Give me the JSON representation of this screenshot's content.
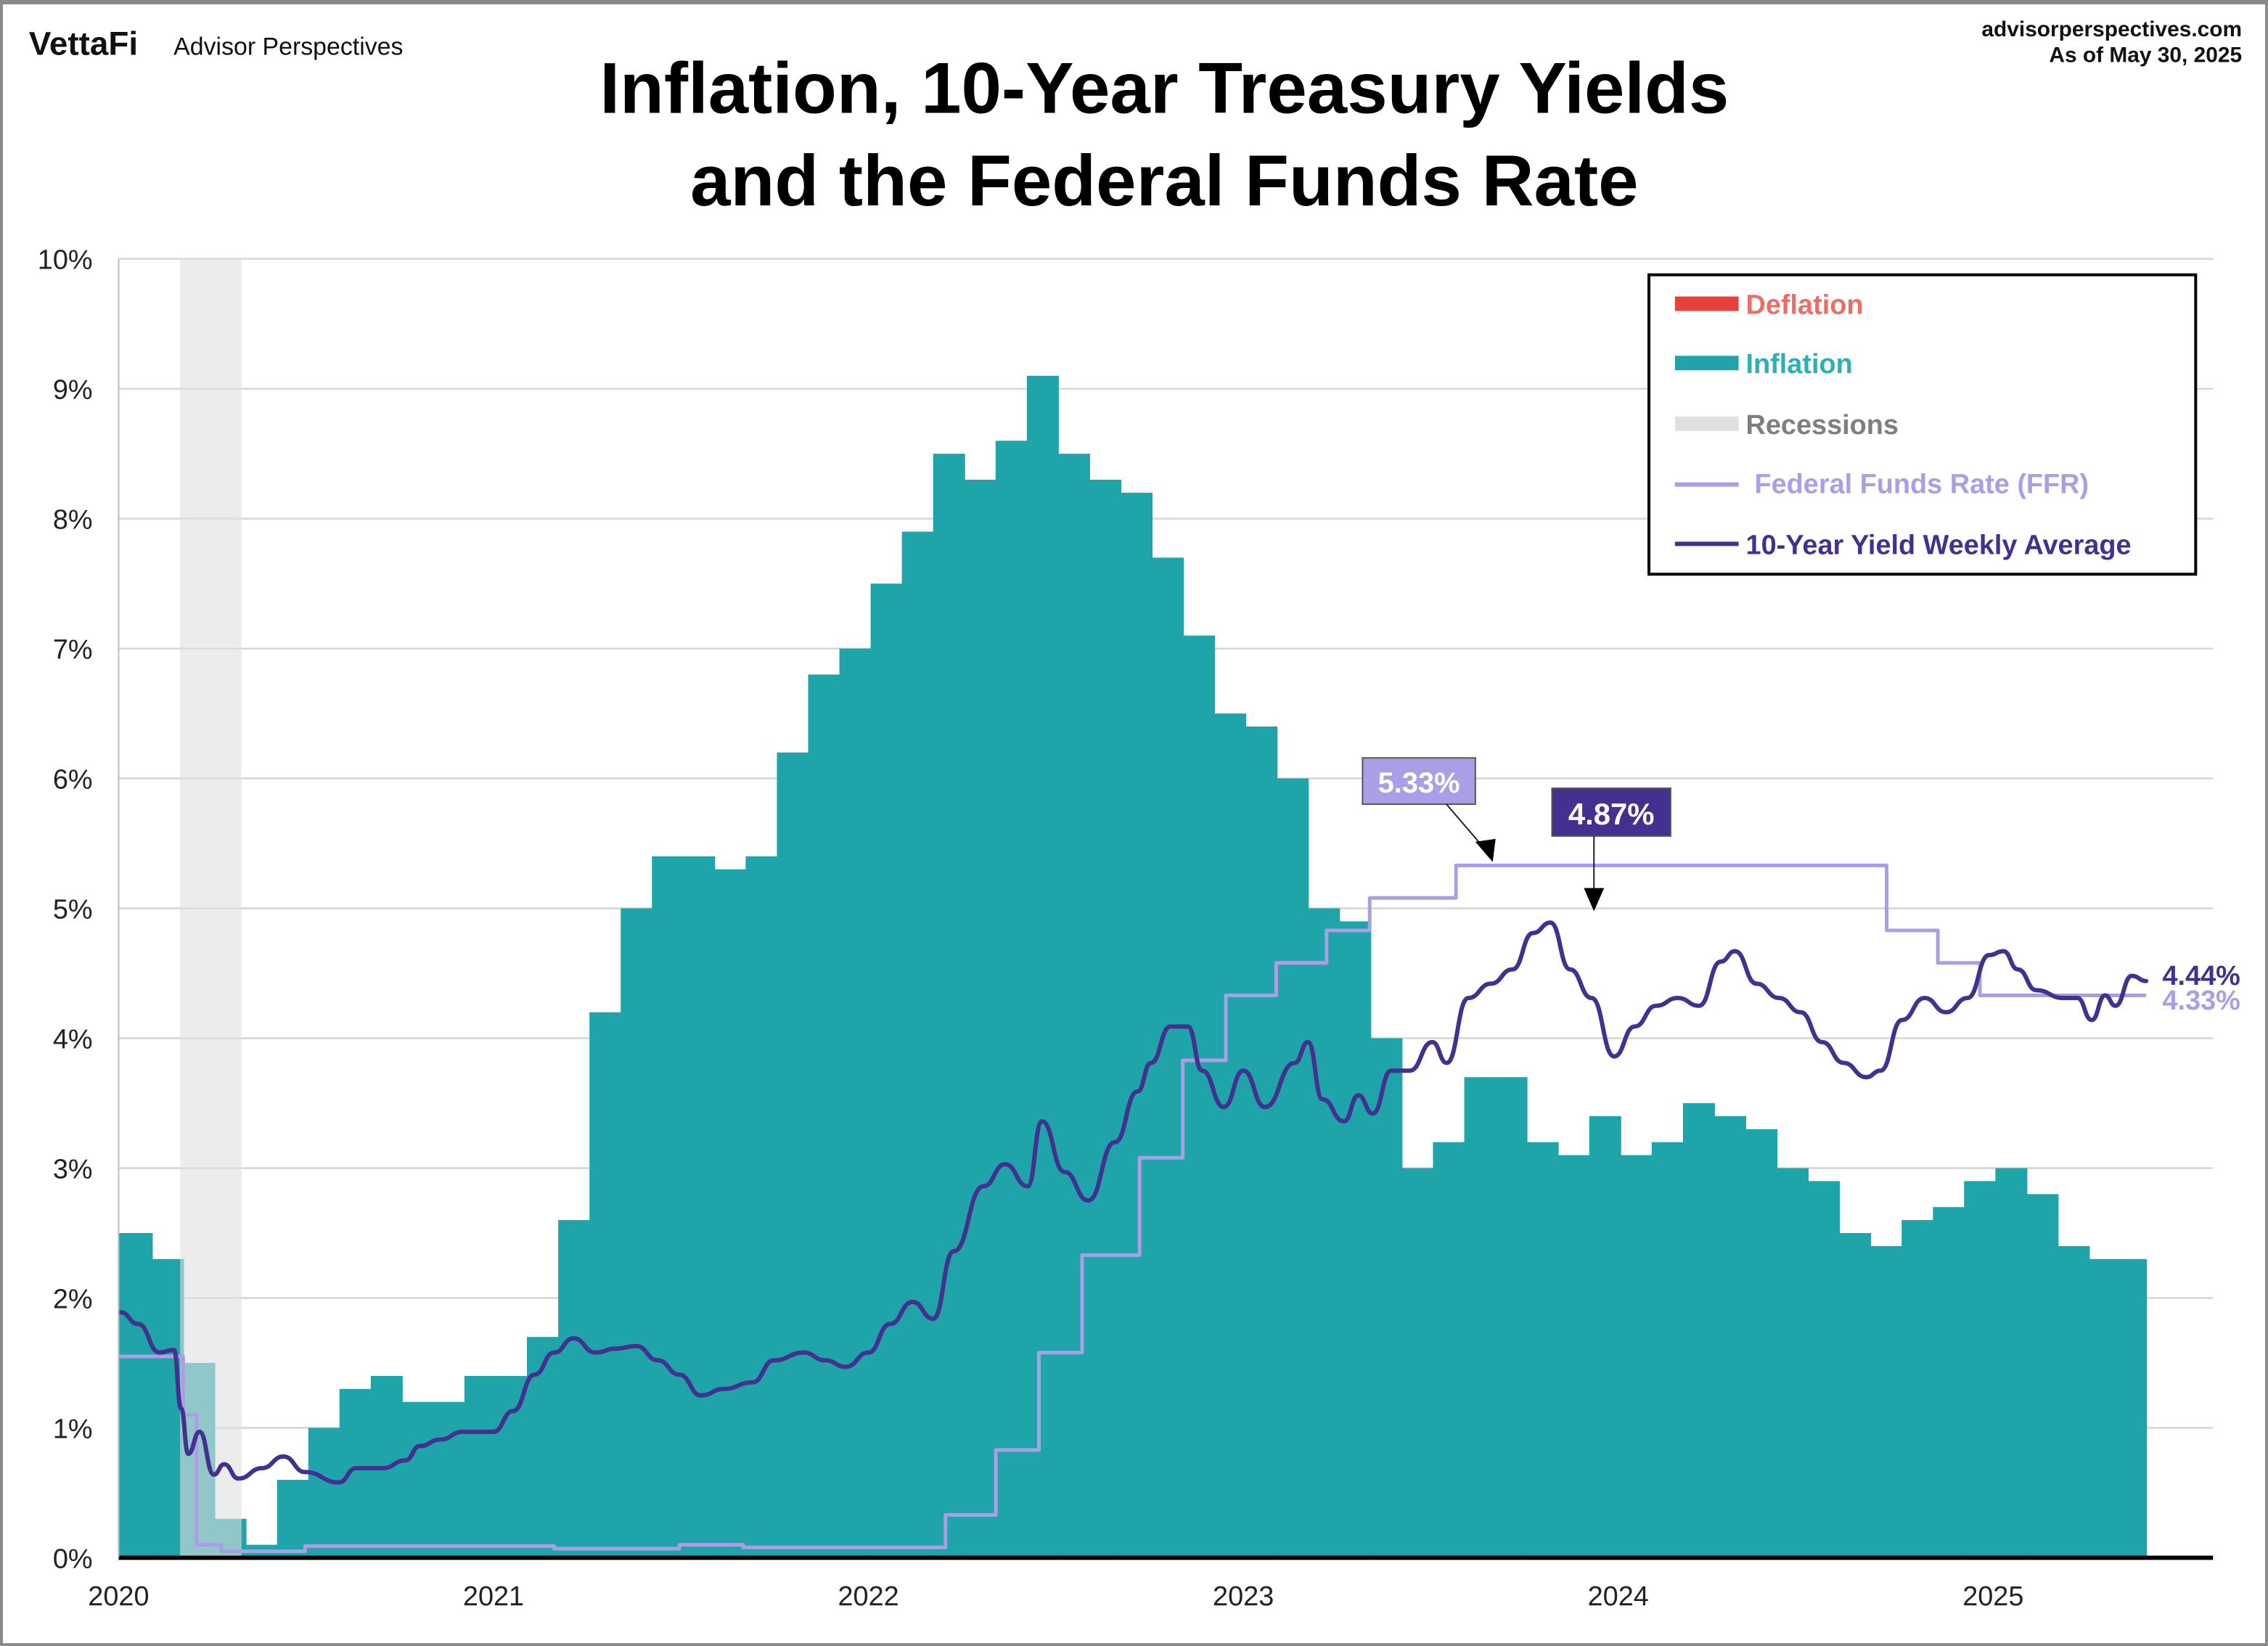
{
  "header": {
    "brand_logo": "VettaFi",
    "brand_name": "Advisor Perspectives",
    "website": "advisorperspectives.com",
    "as_of": "As of May 30, 2025"
  },
  "colors": {
    "deflation": "#e8413c",
    "inflation": "#1fa4a9",
    "recession": "#e0e0e0",
    "ffr": "#ab9ee6",
    "ten_year": "#43308f"
  },
  "chart_data": {
    "type": "area",
    "title_line1": "Inflation, 10-Year Treasury Yields",
    "title_line2": "and the Federal Funds Rate",
    "xlabel": "",
    "ylabel": "",
    "ylim": [
      0,
      10
    ],
    "xlim": [
      "2020-01-01",
      "2025-08-01"
    ],
    "y_ticks": [
      "0%",
      "1%",
      "2%",
      "3%",
      "4%",
      "5%",
      "6%",
      "7%",
      "8%",
      "9%",
      "10%"
    ],
    "x_ticks": [
      "2020",
      "2021",
      "2022",
      "2023",
      "2024",
      "2025"
    ],
    "grid": true,
    "legend_position": "top-right",
    "legend": [
      {
        "key": "deflation",
        "label": "Deflation"
      },
      {
        "key": "inflation",
        "label": "Inflation"
      },
      {
        "key": "recession",
        "label": "Recessions"
      },
      {
        "key": "ffr",
        "label": "Federal Funds Rate (FFR)"
      },
      {
        "key": "ten_year",
        "label": "10-Year Yield Weekly Average"
      }
    ],
    "recessions": [
      {
        "start": "2020-03-01",
        "end": "2020-04-30"
      }
    ],
    "inflation_monthly": {
      "start_month": "2020-01",
      "values": [
        2.5,
        2.3,
        1.5,
        0.3,
        0.1,
        0.6,
        1.0,
        1.3,
        1.4,
        1.2,
        1.2,
        1.4,
        1.4,
        1.7,
        2.6,
        4.2,
        5.0,
        5.4,
        5.4,
        5.3,
        5.4,
        6.2,
        6.8,
        7.0,
        7.5,
        7.9,
        8.5,
        8.3,
        8.6,
        9.1,
        8.5,
        8.3,
        8.2,
        7.7,
        7.1,
        6.5,
        6.4,
        6.0,
        5.0,
        4.9,
        4.0,
        3.0,
        3.2,
        3.7,
        3.7,
        3.2,
        3.1,
        3.4,
        3.1,
        3.2,
        3.5,
        3.4,
        3.3,
        3.0,
        2.9,
        2.5,
        2.4,
        2.6,
        2.7,
        2.9,
        3.0,
        2.8,
        2.4,
        2.3
      ]
    },
    "ffr": [
      [
        "2020-01-01",
        1.55
      ],
      [
        "2020-03-04",
        1.1
      ],
      [
        "2020-03-17",
        0.1
      ],
      [
        "2020-04-10",
        0.05
      ],
      [
        "2020-07-01",
        0.09
      ],
      [
        "2021-03-01",
        0.07
      ],
      [
        "2021-07-01",
        0.1
      ],
      [
        "2021-09-01",
        0.08
      ],
      [
        "2022-03-17",
        0.33
      ],
      [
        "2022-05-05",
        0.83
      ],
      [
        "2022-06-16",
        1.58
      ],
      [
        "2022-07-28",
        2.33
      ],
      [
        "2022-09-22",
        3.08
      ],
      [
        "2022-11-03",
        3.83
      ],
      [
        "2022-12-15",
        4.33
      ],
      [
        "2023-02-02",
        4.58
      ],
      [
        "2023-03-23",
        4.83
      ],
      [
        "2023-05-04",
        5.08
      ],
      [
        "2023-07-27",
        5.33
      ],
      [
        "2024-09-19",
        4.83
      ],
      [
        "2024-11-08",
        4.58
      ],
      [
        "2024-12-19",
        4.33
      ],
      [
        "2025-05-30",
        4.33
      ]
    ],
    "ten_year_weekly": [
      [
        "2020-01-03",
        1.89
      ],
      [
        "2020-01-20",
        1.8
      ],
      [
        "2020-02-10",
        1.58
      ],
      [
        "2020-02-24",
        1.6
      ],
      [
        "2020-03-02",
        1.15
      ],
      [
        "2020-03-09",
        0.8
      ],
      [
        "2020-03-20",
        0.97
      ],
      [
        "2020-04-03",
        0.64
      ],
      [
        "2020-04-13",
        0.72
      ],
      [
        "2020-04-27",
        0.61
      ],
      [
        "2020-05-20",
        0.69
      ],
      [
        "2020-06-10",
        0.78
      ],
      [
        "2020-07-01",
        0.66
      ],
      [
        "2020-08-03",
        0.58
      ],
      [
        "2020-08-20",
        0.69
      ],
      [
        "2020-09-15",
        0.69
      ],
      [
        "2020-10-07",
        0.75
      ],
      [
        "2020-10-21",
        0.86
      ],
      [
        "2020-11-10",
        0.91
      ],
      [
        "2020-12-02",
        0.97
      ],
      [
        "2021-01-01",
        0.97
      ],
      [
        "2021-01-20",
        1.13
      ],
      [
        "2021-02-10",
        1.41
      ],
      [
        "2021-03-01",
        1.58
      ],
      [
        "2021-03-20",
        1.69
      ],
      [
        "2021-04-10",
        1.58
      ],
      [
        "2021-04-30",
        1.61
      ],
      [
        "2021-05-20",
        1.63
      ],
      [
        "2021-06-10",
        1.52
      ],
      [
        "2021-07-01",
        1.41
      ],
      [
        "2021-07-22",
        1.25
      ],
      [
        "2021-08-13",
        1.3
      ],
      [
        "2021-09-10",
        1.35
      ],
      [
        "2021-10-01",
        1.52
      ],
      [
        "2021-10-30",
        1.58
      ],
      [
        "2021-11-20",
        1.52
      ],
      [
        "2021-12-10",
        1.47
      ],
      [
        "2022-01-01",
        1.58
      ],
      [
        "2022-01-22",
        1.8
      ],
      [
        "2022-02-13",
        1.97
      ],
      [
        "2022-03-05",
        1.84
      ],
      [
        "2022-03-25",
        2.36
      ],
      [
        "2022-04-23",
        2.86
      ],
      [
        "2022-05-14",
        3.03
      ],
      [
        "2022-06-05",
        2.86
      ],
      [
        "2022-06-19",
        3.36
      ],
      [
        "2022-07-11",
        2.97
      ],
      [
        "2022-08-03",
        2.75
      ],
      [
        "2022-08-29",
        3.2
      ],
      [
        "2022-09-20",
        3.59
      ],
      [
        "2022-10-03",
        3.81
      ],
      [
        "2022-10-22",
        4.09
      ],
      [
        "2022-11-08",
        4.09
      ],
      [
        "2022-11-22",
        3.75
      ],
      [
        "2022-12-13",
        3.47
      ],
      [
        "2023-01-01",
        3.75
      ],
      [
        "2023-01-22",
        3.47
      ],
      [
        "2023-02-20",
        3.81
      ],
      [
        "2023-03-05",
        3.97
      ],
      [
        "2023-03-19",
        3.53
      ],
      [
        "2023-04-09",
        3.36
      ],
      [
        "2023-04-23",
        3.56
      ],
      [
        "2023-05-07",
        3.42
      ],
      [
        "2023-05-25",
        3.75
      ],
      [
        "2023-06-12",
        3.75
      ],
      [
        "2023-07-04",
        3.97
      ],
      [
        "2023-07-18",
        3.81
      ],
      [
        "2023-08-08",
        4.31
      ],
      [
        "2023-08-30",
        4.42
      ],
      [
        "2023-09-20",
        4.53
      ],
      [
        "2023-10-10",
        4.81
      ],
      [
        "2023-10-27",
        4.89
      ],
      [
        "2023-11-15",
        4.53
      ],
      [
        "2023-12-06",
        4.31
      ],
      [
        "2023-12-28",
        3.86
      ],
      [
        "2024-01-17",
        4.09
      ],
      [
        "2024-02-07",
        4.25
      ],
      [
        "2024-02-28",
        4.31
      ],
      [
        "2024-03-20",
        4.25
      ],
      [
        "2024-04-10",
        4.59
      ],
      [
        "2024-04-24",
        4.67
      ],
      [
        "2024-05-15",
        4.42
      ],
      [
        "2024-06-06",
        4.31
      ],
      [
        "2024-06-27",
        4.2
      ],
      [
        "2024-07-18",
        3.97
      ],
      [
        "2024-08-08",
        3.81
      ],
      [
        "2024-08-30",
        3.7
      ],
      [
        "2024-09-13",
        3.75
      ],
      [
        "2024-10-04",
        4.14
      ],
      [
        "2024-10-26",
        4.31
      ],
      [
        "2024-11-16",
        4.2
      ],
      [
        "2024-12-07",
        4.31
      ],
      [
        "2024-12-28",
        4.64
      ],
      [
        "2025-01-11",
        4.67
      ],
      [
        "2025-01-25",
        4.53
      ],
      [
        "2025-02-12",
        4.37
      ],
      [
        "2025-03-10",
        4.31
      ],
      [
        "2025-03-24",
        4.31
      ],
      [
        "2025-04-07",
        4.14
      ],
      [
        "2025-04-20",
        4.33
      ],
      [
        "2025-04-30",
        4.25
      ],
      [
        "2025-05-16",
        4.48
      ],
      [
        "2025-05-30",
        4.44
      ]
    ],
    "annotations": {
      "ffr_peak": {
        "label": "5.33%",
        "date": "2023-07-27",
        "value": 5.33
      },
      "ten_year_peak": {
        "label": "4.87%",
        "date": "2023-10-20",
        "value": 4.87
      },
      "ten_year_last": {
        "label": "4.44%"
      },
      "ffr_last": {
        "label": "4.33%"
      }
    }
  }
}
